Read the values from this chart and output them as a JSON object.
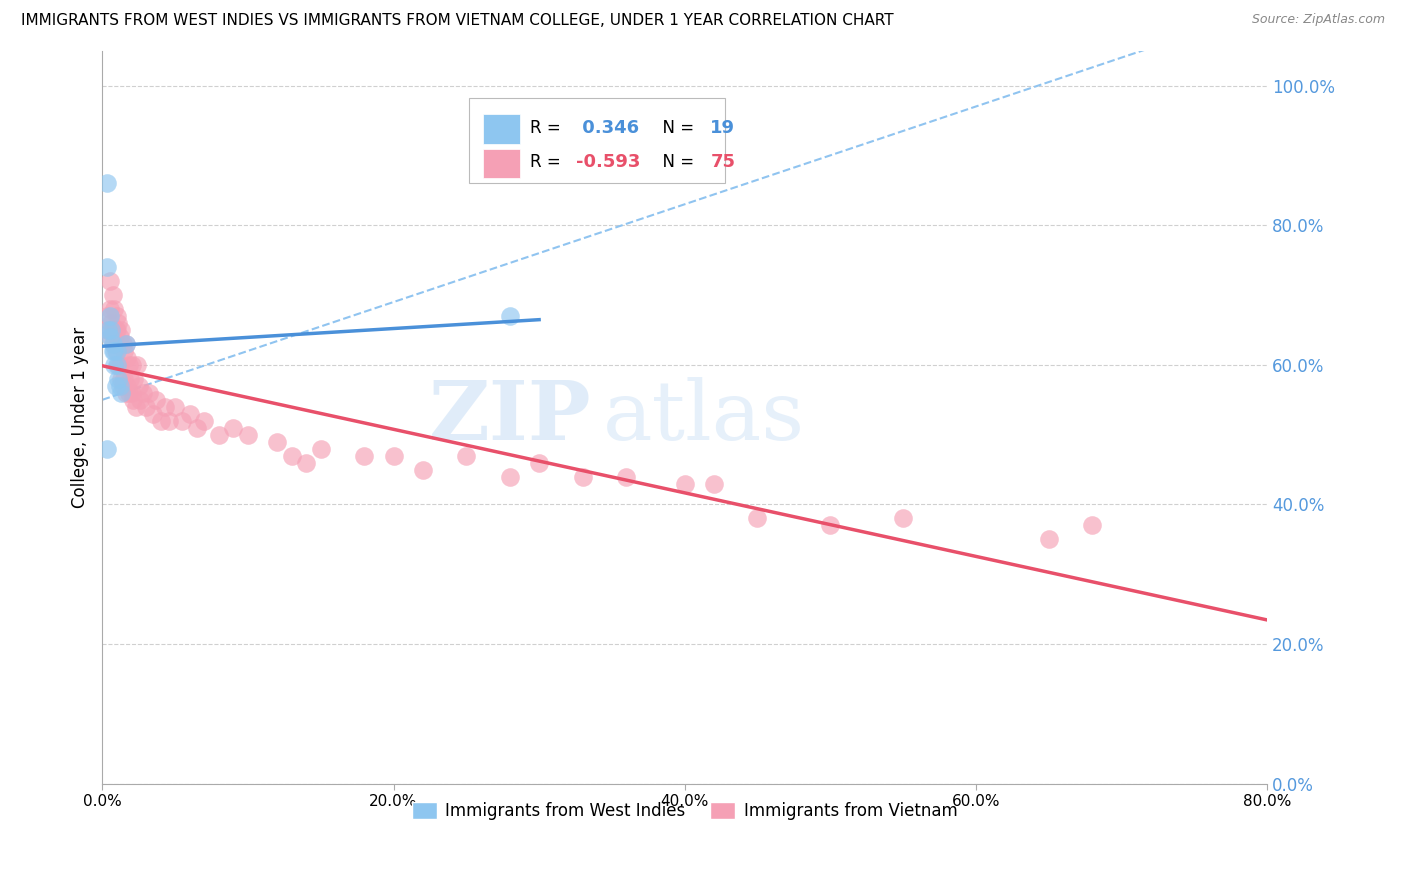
{
  "title": "IMMIGRANTS FROM WEST INDIES VS IMMIGRANTS FROM VIETNAM COLLEGE, UNDER 1 YEAR CORRELATION CHART",
  "source": "Source: ZipAtlas.com",
  "ylabel": "College, Under 1 year",
  "xlim": [
    0.0,
    0.8
  ],
  "ylim": [
    0.0,
    1.05
  ],
  "ytick_labels": [
    "0.0%",
    "20.0%",
    "40.0%",
    "60.0%",
    "80.0%",
    "100.0%"
  ],
  "ytick_values": [
    0.0,
    0.2,
    0.4,
    0.6,
    0.8,
    1.0
  ],
  "xtick_labels": [
    "0.0%",
    "20.0%",
    "40.0%",
    "60.0%",
    "80.0%"
  ],
  "xtick_values": [
    0.0,
    0.2,
    0.4,
    0.6,
    0.8
  ],
  "R1": 0.346,
  "N1": 19,
  "R2": -0.593,
  "N2": 75,
  "color_blue": "#8ec6f0",
  "color_pink": "#f5a0b5",
  "color_blue_line": "#4a90d9",
  "color_pink_line": "#e8506a",
  "color_blue_dashed": "#90c4f0",
  "color_right_axis": "#5599dd",
  "watermark_zip": "ZIP",
  "watermark_atlas": "atlas",
  "background_color": "#ffffff",
  "grid_color": "#d0d0d0",
  "west_indies_x": [
    0.003,
    0.003,
    0.004,
    0.005,
    0.005,
    0.006,
    0.007,
    0.007,
    0.008,
    0.008,
    0.009,
    0.01,
    0.01,
    0.011,
    0.012,
    0.013,
    0.016,
    0.003,
    0.28
  ],
  "west_indies_y": [
    0.86,
    0.74,
    0.65,
    0.67,
    0.64,
    0.65,
    0.62,
    0.63,
    0.62,
    0.6,
    0.57,
    0.62,
    0.6,
    0.58,
    0.57,
    0.56,
    0.63,
    0.48,
    0.67
  ],
  "vietnam_x": [
    0.003,
    0.004,
    0.005,
    0.005,
    0.006,
    0.006,
    0.007,
    0.007,
    0.008,
    0.008,
    0.009,
    0.009,
    0.01,
    0.01,
    0.01,
    0.011,
    0.011,
    0.012,
    0.012,
    0.013,
    0.013,
    0.014,
    0.014,
    0.015,
    0.015,
    0.016,
    0.016,
    0.017,
    0.017,
    0.018,
    0.018,
    0.019,
    0.02,
    0.02,
    0.021,
    0.022,
    0.023,
    0.024,
    0.025,
    0.026,
    0.028,
    0.03,
    0.032,
    0.035,
    0.037,
    0.04,
    0.043,
    0.046,
    0.05,
    0.055,
    0.06,
    0.065,
    0.07,
    0.08,
    0.09,
    0.1,
    0.12,
    0.13,
    0.14,
    0.15,
    0.18,
    0.2,
    0.22,
    0.25,
    0.28,
    0.3,
    0.33,
    0.36,
    0.4,
    0.42,
    0.45,
    0.5,
    0.55,
    0.65,
    0.68
  ],
  "vietnam_y": [
    0.67,
    0.65,
    0.72,
    0.68,
    0.66,
    0.64,
    0.7,
    0.65,
    0.68,
    0.63,
    0.65,
    0.62,
    0.67,
    0.65,
    0.63,
    0.66,
    0.6,
    0.64,
    0.6,
    0.65,
    0.58,
    0.63,
    0.57,
    0.62,
    0.58,
    0.63,
    0.56,
    0.61,
    0.57,
    0.6,
    0.56,
    0.58,
    0.6,
    0.56,
    0.55,
    0.58,
    0.54,
    0.6,
    0.57,
    0.55,
    0.56,
    0.54,
    0.56,
    0.53,
    0.55,
    0.52,
    0.54,
    0.52,
    0.54,
    0.52,
    0.53,
    0.51,
    0.52,
    0.5,
    0.51,
    0.5,
    0.49,
    0.47,
    0.46,
    0.48,
    0.47,
    0.47,
    0.45,
    0.47,
    0.44,
    0.46,
    0.44,
    0.44,
    0.43,
    0.43,
    0.38,
    0.37,
    0.38,
    0.35,
    0.37
  ]
}
